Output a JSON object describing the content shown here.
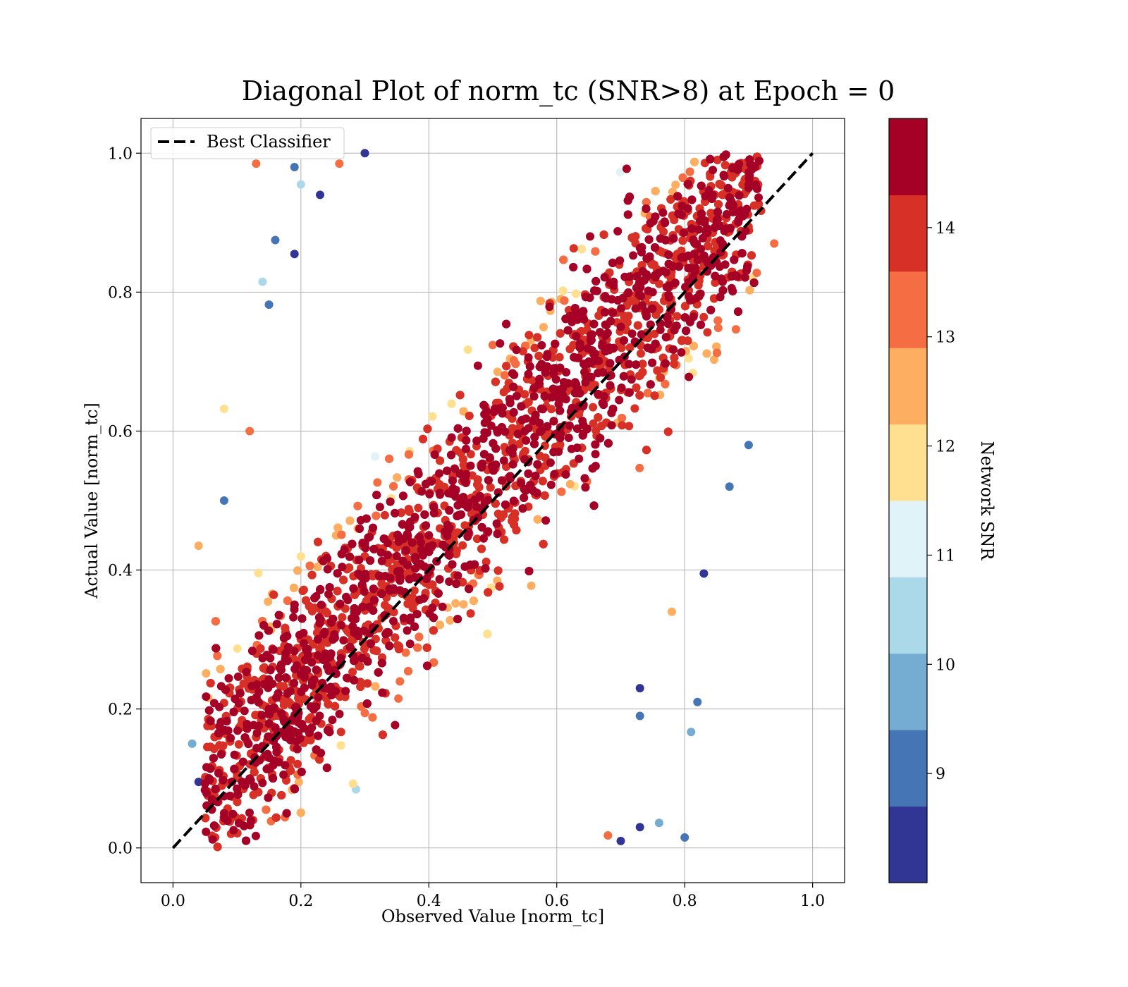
{
  "chart_data": {
    "type": "scatter",
    "title": "Diagonal Plot of norm_tc (SNR>8) at Epoch = 0",
    "xlabel": "Observed Value [norm_tc]",
    "ylabel": "Actual Value [norm_tc]",
    "xlim": [
      -0.05,
      1.05
    ],
    "ylim": [
      -0.05,
      1.05
    ],
    "xticks": [
      "0.0",
      "0.2",
      "0.4",
      "0.6",
      "0.8",
      "1.0"
    ],
    "yticks": [
      "0.0",
      "0.2",
      "0.4",
      "0.6",
      "0.8",
      "1.0"
    ],
    "grid": true,
    "legend": {
      "position": "upper-left",
      "entries": [
        "Best Classifier"
      ]
    },
    "reference_line": {
      "name": "Best Classifier",
      "style": "dashed",
      "color": "#000000",
      "x": [
        0,
        1
      ],
      "y": [
        0,
        1
      ]
    },
    "colorbar": {
      "label": "Network SNR",
      "range": [
        8,
        15
      ],
      "ticks": [
        "9",
        "10",
        "11",
        "12",
        "13",
        "14"
      ],
      "colors": [
        "#313695",
        "#4575b4",
        "#74add1",
        "#abd9e9",
        "#e0f3f8",
        "#fee090",
        "#fdae61",
        "#f46d43",
        "#d73027",
        "#a50026"
      ]
    },
    "point_cloud": {
      "description_band": "points clustered along diagonal, x range ~0.03-0.94, y range 0-1",
      "samples": [
        {
          "x": 0.08,
          "y": 0.05,
          "snr": 14.8
        },
        {
          "x": 0.12,
          "y": 0.1,
          "snr": 14.7
        },
        {
          "x": 0.15,
          "y": 0.2,
          "snr": 14.5
        },
        {
          "x": 0.2,
          "y": 0.25,
          "snr": 14.9
        },
        {
          "x": 0.25,
          "y": 0.3,
          "snr": 14.6
        },
        {
          "x": 0.3,
          "y": 0.35,
          "snr": 14.2
        },
        {
          "x": 0.35,
          "y": 0.42,
          "snr": 14.8
        },
        {
          "x": 0.4,
          "y": 0.45,
          "snr": 14.7
        },
        {
          "x": 0.45,
          "y": 0.5,
          "snr": 14.5
        },
        {
          "x": 0.5,
          "y": 0.55,
          "snr": 14.9
        },
        {
          "x": 0.55,
          "y": 0.6,
          "snr": 14.6
        },
        {
          "x": 0.6,
          "y": 0.65,
          "snr": 14.3
        },
        {
          "x": 0.65,
          "y": 0.7,
          "snr": 14.8
        },
        {
          "x": 0.7,
          "y": 0.75,
          "snr": 14.7
        },
        {
          "x": 0.75,
          "y": 0.8,
          "snr": 14.5
        },
        {
          "x": 0.8,
          "y": 0.85,
          "snr": 14.9
        },
        {
          "x": 0.85,
          "y": 0.9,
          "snr": 14.6
        },
        {
          "x": 0.9,
          "y": 0.95,
          "snr": 14.4
        },
        {
          "x": 0.13,
          "y": 0.985,
          "snr": 13.2
        },
        {
          "x": 0.19,
          "y": 0.98,
          "snr": 9.0
        },
        {
          "x": 0.2,
          "y": 0.955,
          "snr": 10.5
        },
        {
          "x": 0.23,
          "y": 0.94,
          "snr": 8.3
        },
        {
          "x": 0.16,
          "y": 0.875,
          "snr": 9.2
        },
        {
          "x": 0.19,
          "y": 0.855,
          "snr": 8.4
        },
        {
          "x": 0.14,
          "y": 0.815,
          "snr": 10.7
        },
        {
          "x": 0.15,
          "y": 0.782,
          "snr": 9.3
        },
        {
          "x": 0.08,
          "y": 0.632,
          "snr": 12.0
        },
        {
          "x": 0.12,
          "y": 0.6,
          "snr": 13.2
        },
        {
          "x": 0.04,
          "y": 0.435,
          "snr": 12.3
        },
        {
          "x": 0.08,
          "y": 0.5,
          "snr": 9.1
        },
        {
          "x": 0.83,
          "y": 0.395,
          "snr": 8.5
        },
        {
          "x": 0.82,
          "y": 0.21,
          "snr": 9.0
        },
        {
          "x": 0.81,
          "y": 0.167,
          "snr": 9.8
        },
        {
          "x": 0.8,
          "y": 0.015,
          "snr": 9.0
        },
        {
          "x": 0.76,
          "y": 0.036,
          "snr": 10.1
        },
        {
          "x": 0.73,
          "y": 0.03,
          "snr": 8.4
        },
        {
          "x": 0.7,
          "y": 0.01,
          "snr": 8.3
        },
        {
          "x": 0.68,
          "y": 0.018,
          "snr": 13.0
        },
        {
          "x": 0.73,
          "y": 0.23,
          "snr": 8.4
        },
        {
          "x": 0.73,
          "y": 0.19,
          "snr": 9.0
        },
        {
          "x": 0.9,
          "y": 0.58,
          "snr": 9.0
        },
        {
          "x": 0.94,
          "y": 0.87,
          "snr": 13.5
        },
        {
          "x": 0.3,
          "y": 1.0,
          "snr": 8.2
        },
        {
          "x": 0.26,
          "y": 0.985,
          "snr": 13.4
        },
        {
          "x": 0.03,
          "y": 0.15,
          "snr": 9.8
        },
        {
          "x": 0.04,
          "y": 0.095,
          "snr": 8.6
        },
        {
          "x": 0.78,
          "y": 0.34,
          "snr": 12.8
        },
        {
          "x": 0.87,
          "y": 0.52,
          "snr": 8.9
        }
      ]
    }
  }
}
